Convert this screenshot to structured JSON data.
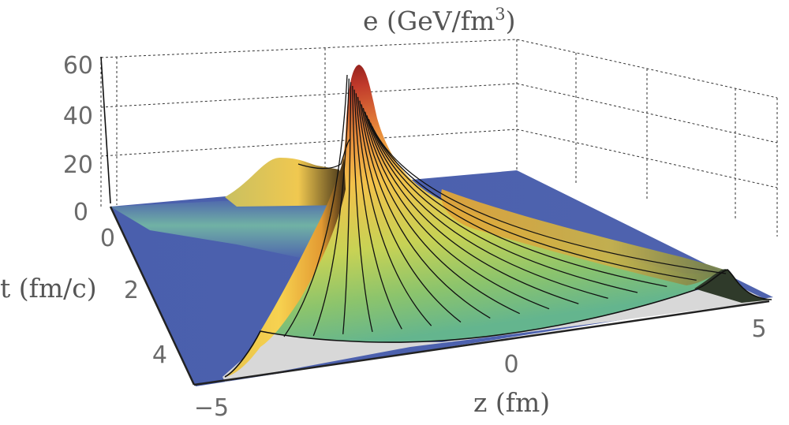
{
  "chart_data": {
    "type": "surface3d",
    "title": "",
    "zlabel_prefix": "e (GeV/fm",
    "zlabel_sup": "3",
    "zlabel_suffix": ")",
    "xlabel": "z (fm)",
    "ylabel": "t (fm/c)",
    "z_ticks": [
      "0",
      "20",
      "40",
      "60"
    ],
    "t_ticks": [
      "0",
      "2",
      "4"
    ],
    "x_ticks": [
      "−5",
      "0",
      "5"
    ],
    "zlim": [
      0,
      60
    ],
    "tlim": [
      0,
      5
    ],
    "xlim": [
      -5,
      5
    ],
    "peak_energy_density": 57,
    "grid": true,
    "colormap": [
      "#4a5fad",
      "#6dbba0",
      "#f5d54a",
      "#e89b33",
      "#8f1f1f"
    ]
  }
}
